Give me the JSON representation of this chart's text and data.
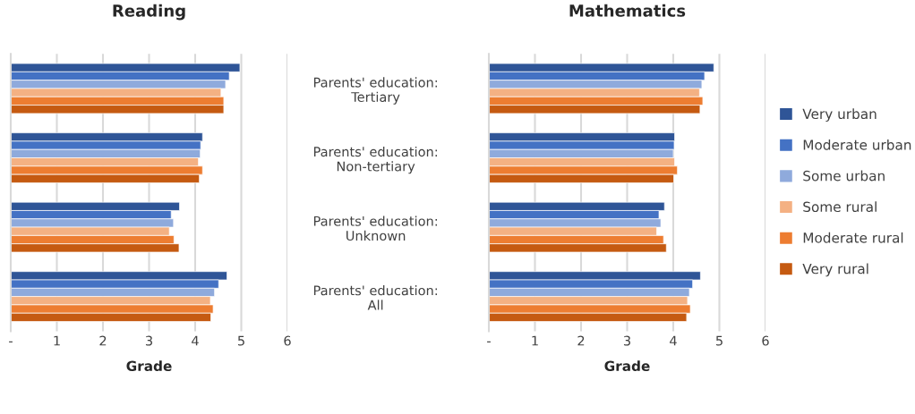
{
  "chart_data": [
    {
      "type": "bar",
      "orientation": "horizontal",
      "title": "Reading",
      "xlabel": "Grade",
      "categories": [
        "Parents' education:\nTertiary",
        "Parents' education:\nNon-tertiary",
        "Parents' education:\nUnknown",
        "Parents' education:\nAll"
      ],
      "series": [
        {
          "color": "#2f5597",
          "values": [
            4.97,
            4.16,
            3.66,
            4.69
          ]
        },
        {
          "color": "#4472c4",
          "values": [
            4.74,
            4.12,
            3.48,
            4.51
          ]
        },
        {
          "color": "#8faadc",
          "values": [
            4.66,
            4.11,
            3.53,
            4.42
          ]
        },
        {
          "color": "#f4b183",
          "values": [
            4.56,
            4.07,
            3.44,
            4.33
          ]
        },
        {
          "color": "#ed7d31",
          "values": [
            4.62,
            4.16,
            3.54,
            4.39
          ]
        },
        {
          "color": "#c55a11",
          "values": [
            4.62,
            4.09,
            3.65,
            4.34
          ]
        }
      ],
      "xlim": [
        0,
        6
      ],
      "xticks": [
        {
          "value": 0,
          "label": "-"
        },
        1,
        2,
        3,
        4,
        5,
        6
      ],
      "grid": "x"
    },
    {
      "type": "bar",
      "orientation": "horizontal",
      "title": "Mathematics",
      "xlabel": "Grade",
      "categories": [
        null,
        null,
        null,
        null
      ],
      "series": [
        {
          "name": "Very urban",
          "color": "#2f5597",
          "values": [
            4.88,
            4.03,
            3.81,
            4.59
          ]
        },
        {
          "name": "Moderate urban",
          "color": "#4472c4",
          "values": [
            4.68,
            4.02,
            3.69,
            4.42
          ]
        },
        {
          "name": "Some urban",
          "color": "#8faadc",
          "values": [
            4.62,
            4.0,
            3.73,
            4.35
          ]
        },
        {
          "name": "Some rural",
          "color": "#f4b183",
          "values": [
            4.57,
            4.03,
            3.64,
            4.31
          ]
        },
        {
          "name": "Moderate rural",
          "color": "#ed7d31",
          "values": [
            4.64,
            4.09,
            3.79,
            4.37
          ]
        },
        {
          "name": "Very rural",
          "color": "#c55a11",
          "values": [
            4.58,
            4.01,
            3.85,
            4.29
          ]
        }
      ],
      "xlim": [
        0,
        6
      ],
      "xticks": [
        {
          "value": 0,
          "label": "-"
        },
        1,
        2,
        3,
        4,
        5,
        6
      ],
      "grid": "x",
      "legend": "right",
      "tick_labels": "x"
    }
  ]
}
